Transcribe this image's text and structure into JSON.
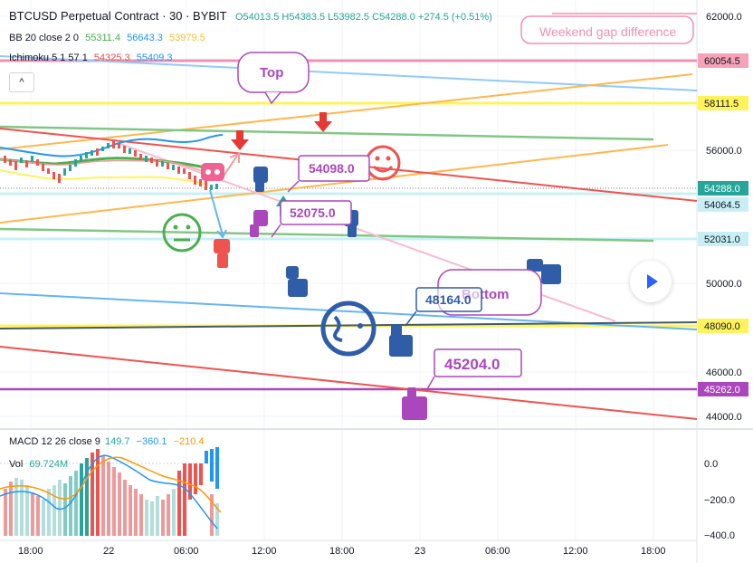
{
  "header": {
    "symbol": "BTCUSD Perpetual Contract · 30 · BYBIT",
    "ohlc": [
      {
        "label": "O",
        "value": "54013.5"
      },
      {
        "label": "H",
        "value": "54383.5"
      },
      {
        "label": "L",
        "value": "53982.5"
      },
      {
        "label": "C",
        "value": "54288.0"
      }
    ],
    "change": "+274.5 (+0.51%)",
    "bb": {
      "label": "BB 20 close 2 0",
      "v1": "55311.4",
      "v2": "56643.3",
      "v3": "53979.5"
    },
    "ichimoku": {
      "label": "Ichimoku 5 1 57 1",
      "v1": "54325.3",
      "v2": "55409.3"
    },
    "collapse_glyph": "^"
  },
  "price_axis": {
    "ticks": [
      "62000.0",
      "56000.0",
      "50000.0",
      "46000.0",
      "44000.0"
    ],
    "tags": [
      {
        "text": "60054.5",
        "bg": "#f6a2b8",
        "fg": "#131722"
      },
      {
        "text": "58111.5",
        "bg": "#fff35c",
        "fg": "#131722"
      },
      {
        "text": "54288.0",
        "bg": "#26a69a",
        "fg": "#ffffff"
      },
      {
        "text": "54064.5",
        "bg": "#c8f0f4",
        "fg": "#131722"
      },
      {
        "text": "52031.0",
        "bg": "#c8f0f4",
        "fg": "#131722"
      },
      {
        "text": "48090.0",
        "bg": "#fff35c",
        "fg": "#131722"
      },
      {
        "text": "45262.0",
        "bg": "#ab47bc",
        "fg": "#ffffff"
      }
    ]
  },
  "macd": {
    "label": "MACD 12 26 close 9",
    "v1": "149.7",
    "v2": "−360.1",
    "v3": "−210.4",
    "ticks": [
      "0.0",
      "−200.0",
      "−400.0"
    ]
  },
  "volume": {
    "label": "Vol",
    "value": "69.724M"
  },
  "time_axis": {
    "ticks": [
      "18:00",
      "22",
      "06:00",
      "12:00",
      "18:00",
      "23",
      "06:00",
      "12:00",
      "18:00"
    ]
  },
  "annotations": {
    "top": "Top",
    "bottom": "Bottom",
    "weekend": "Weekend gap difference",
    "p1": "54098.0",
    "p2": "52075.0",
    "p3": "48164.0",
    "p4": "45204.0"
  },
  "colors": {
    "up": "#26a69a",
    "down": "#ef5350",
    "accent": "#2962ff",
    "purple": "#ab47bc",
    "orange": "#ffa726",
    "annotation_blue": "#2f5da8"
  },
  "icons": [
    "play-icon",
    "smiley-icon",
    "neutral-face-icon",
    "wink-face-icon",
    "pointing-hand-icon",
    "down-arrow-icon",
    "up-arrow-icon"
  ]
}
